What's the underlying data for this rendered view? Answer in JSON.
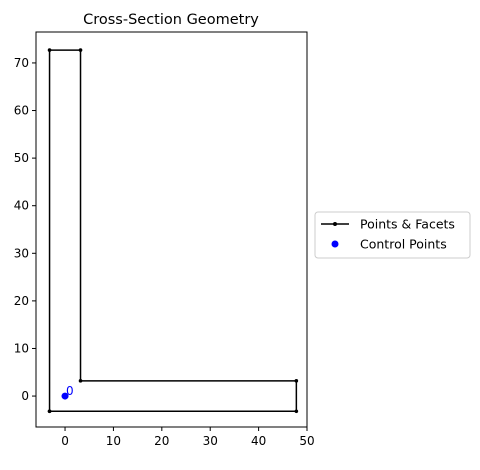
{
  "chart_data": {
    "type": "line",
    "title": "Cross-Section Geometry",
    "xlabel": "",
    "ylabel": "",
    "xlim": [
      -6,
      50
    ],
    "ylim": [
      -6.5,
      76.5
    ],
    "x_ticks": [
      0,
      10,
      20,
      30,
      40,
      50
    ],
    "y_ticks": [
      0,
      10,
      20,
      30,
      40,
      50,
      60,
      70
    ],
    "grid": false,
    "legend_position": "right",
    "series": [
      {
        "name": "Points & Facets",
        "color": "#000000",
        "points": [
          {
            "x": -3.2,
            "y": -3.2
          },
          {
            "x": 47.8,
            "y": -3.2
          },
          {
            "x": 47.8,
            "y": 3.2
          },
          {
            "x": 3.2,
            "y": 3.2
          },
          {
            "x": 3.2,
            "y": 72.7
          },
          {
            "x": -3.2,
            "y": 72.7
          },
          {
            "x": -3.2,
            "y": -3.2
          }
        ]
      },
      {
        "name": "Control Points",
        "color": "#0000ff",
        "points": [
          {
            "x": 0,
            "y": 0,
            "label": "0"
          }
        ]
      }
    ]
  }
}
